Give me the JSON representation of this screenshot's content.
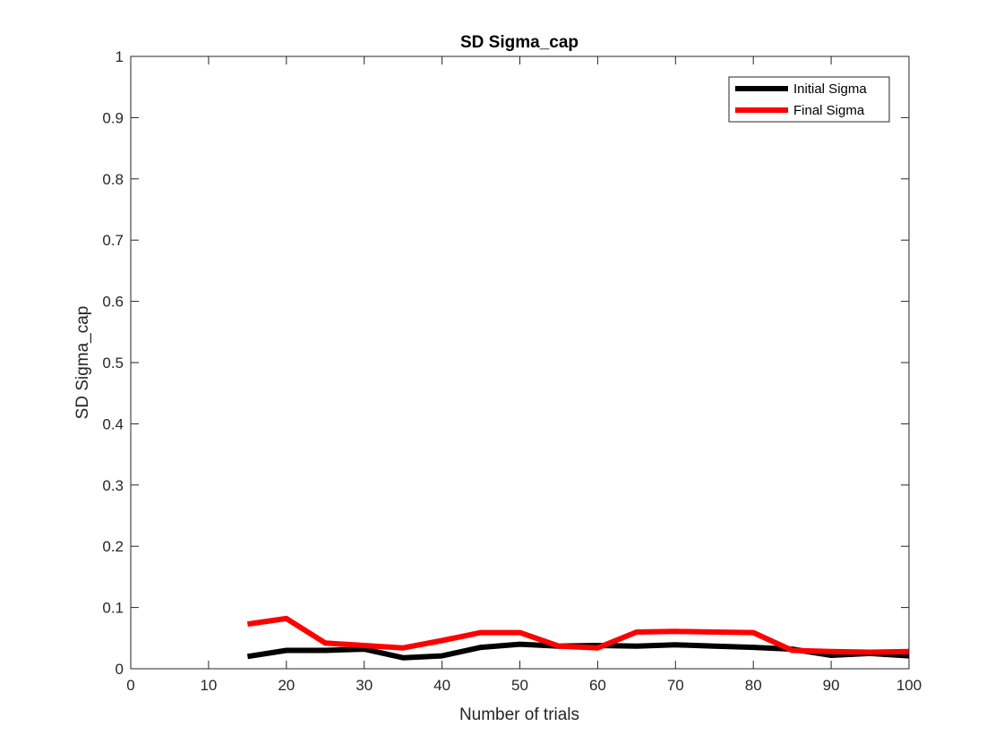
{
  "chart_data": {
    "type": "line",
    "title": "SD Sigma_cap",
    "xlabel": "Number of trials",
    "ylabel": "SD Sigma_cap",
    "xlim": [
      0,
      100
    ],
    "ylim": [
      0,
      1
    ],
    "xticks": [
      0,
      10,
      20,
      30,
      40,
      50,
      60,
      70,
      80,
      90,
      100
    ],
    "yticks": [
      0,
      0.1,
      0.2,
      0.3,
      0.4,
      0.5,
      0.6,
      0.7,
      0.8,
      0.9,
      1
    ],
    "ytick_labels": [
      "0",
      "0.1",
      "0.2",
      "0.3",
      "0.4",
      "0.5",
      "0.6",
      "0.7",
      "0.8",
      "0.9",
      "1"
    ],
    "grid": false,
    "legend_position": "top-right",
    "x": [
      15,
      20,
      25,
      30,
      35,
      40,
      45,
      50,
      55,
      60,
      65,
      70,
      75,
      80,
      85,
      90,
      95,
      100
    ],
    "series": [
      {
        "name": "Initial Sigma",
        "color": "#000000",
        "values": [
          0.02,
          0.03,
          0.03,
          0.032,
          0.018,
          0.021,
          0.035,
          0.04,
          0.037,
          0.038,
          0.037,
          0.039,
          0.037,
          0.035,
          0.032,
          0.022,
          0.025,
          0.021
        ]
      },
      {
        "name": "Final Sigma",
        "color": "#ff0000",
        "values": [
          0.073,
          0.082,
          0.042,
          0.038,
          0.034,
          0.046,
          0.059,
          0.059,
          0.037,
          0.034,
          0.06,
          0.061,
          0.06,
          0.059,
          0.03,
          0.028,
          0.027,
          0.028
        ]
      }
    ]
  }
}
